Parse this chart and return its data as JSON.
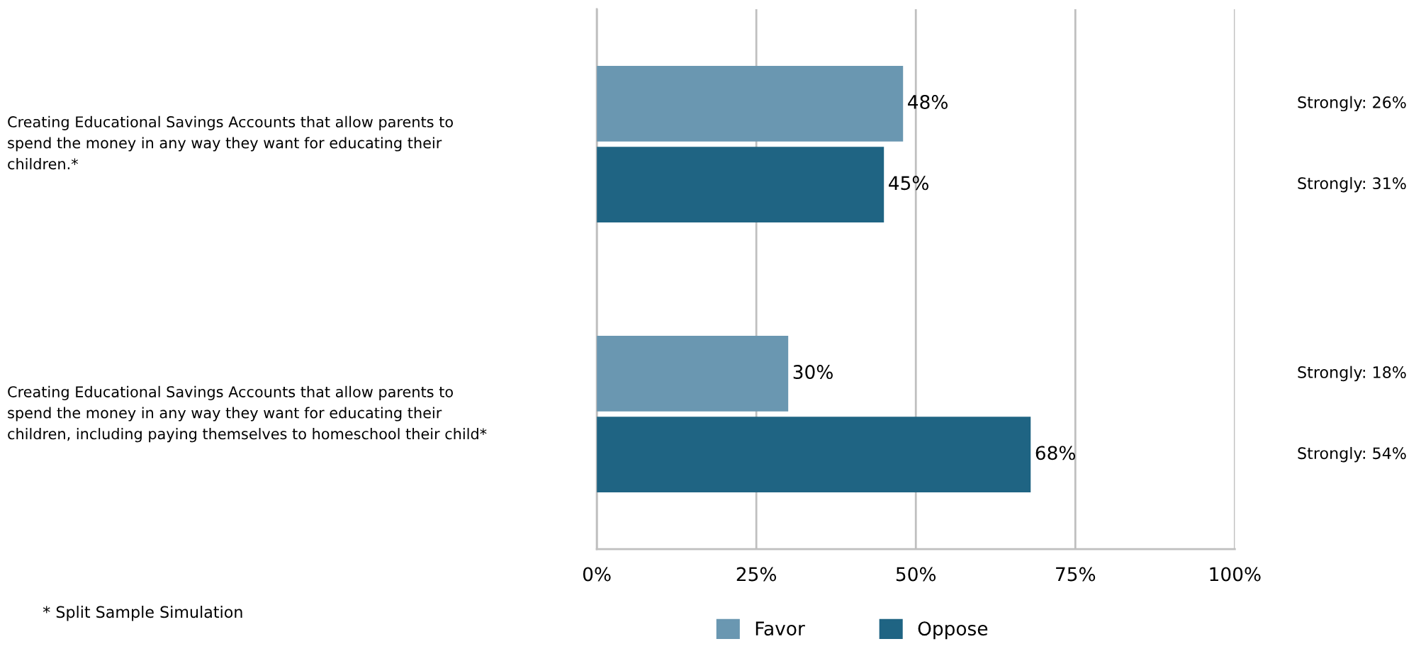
{
  "chart_data": {
    "type": "bar",
    "orientation": "horizontal",
    "categories": [
      "Creating Educational Savings Accounts that allow parents to\nspend the money in any way they want for educating their\nchildren.*",
      "Creating Educational Savings Accounts that allow parents to\nspend the money in any way they want for educating their\nchildren, including paying themselves to homeschool their child*"
    ],
    "series": [
      {
        "name": "Favor",
        "color": "#6a97b1",
        "values": [
          48,
          30
        ],
        "value_labels": [
          "48%",
          "30%"
        ]
      },
      {
        "name": "Oppose",
        "color": "#1f6483",
        "values": [
          45,
          68
        ],
        "value_labels": [
          "45%",
          "68%"
        ]
      }
    ],
    "xlim": [
      0,
      100
    ],
    "xticks": [
      {
        "value": 0,
        "label": "0%"
      },
      {
        "value": 25,
        "label": "25%"
      },
      {
        "value": 50,
        "label": "50%"
      },
      {
        "value": 75,
        "label": "75%"
      },
      {
        "value": 100,
        "label": "100%"
      }
    ],
    "grid": "x",
    "legend": "bottom",
    "annotations": [
      "Strongly: 26%",
      "Strongly: 31%",
      "Strongly: 18%",
      "Strongly: 54%",
      "* Split Sample Simulation"
    ]
  }
}
